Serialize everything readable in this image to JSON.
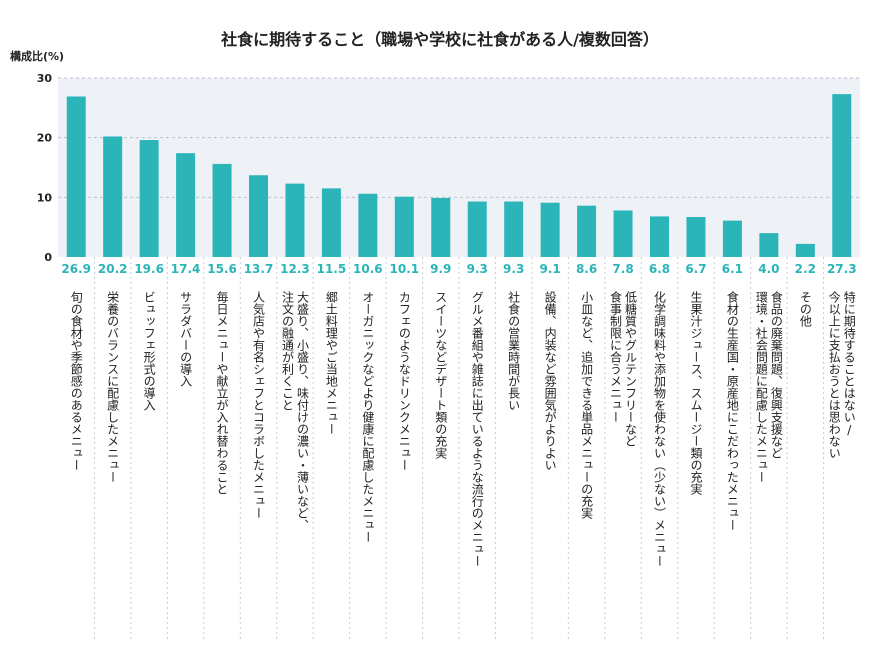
{
  "chart_data": {
    "type": "bar",
    "title": "社食に期待すること（職場や学校に社食がある人/複数回答）",
    "ylabel": "構成比(%)",
    "ylim": [
      0,
      30
    ],
    "yticks": [
      0,
      10,
      20,
      30
    ],
    "grid": true,
    "bar_color": "#2bb5b8",
    "plot_bg": "#eef2f7",
    "categories": [
      [
        "旬の食材や季節感のあるメニュー"
      ],
      [
        "栄養のバランスに配慮したメニュー"
      ],
      [
        "ビュッフェ形式の導入"
      ],
      [
        "サラダバーの導入"
      ],
      [
        "毎日メニューや献立が入れ替わること"
      ],
      [
        "人気店や有名シェフとコラボしたメニュー"
      ],
      [
        "大盛り、小盛り、味付けの濃い・薄いなど、",
        "注文の融通が利くこと"
      ],
      [
        "郷土料理やご当地メニュー"
      ],
      [
        "オーガニックなどより健康に配慮したメニュー"
      ],
      [
        "カフェのようなドリンクメニュー"
      ],
      [
        "スイーツなどデザート類の充実"
      ],
      [
        "グルメ番組や雑誌に出ているような流行のメニュー"
      ],
      [
        "社食の営業時間が長い"
      ],
      [
        "設備、内装など雰囲気がよりよい"
      ],
      [
        "小皿など、追加できる単品メニューの充実"
      ],
      [
        "低糖質やグルテンフリーなど",
        "食事制限に合うメニュー"
      ],
      [
        "化学調味料や添加物を使わない（少ない）メニュー"
      ],
      [
        "生果汁ジュース、スムージー類の充実"
      ],
      [
        "食材の生産国・原産地にこだわったメニュー"
      ],
      [
        "食品の廃棄問題、復興支援など",
        "環境・社会問題に配慮したメニュー"
      ],
      [
        "その他"
      ],
      [
        "特に期待することはない/",
        "今以上に支払おうとは思わない"
      ]
    ],
    "values": [
      26.9,
      20.2,
      19.6,
      17.4,
      15.6,
      13.7,
      12.3,
      11.5,
      10.6,
      10.1,
      9.9,
      9.3,
      9.3,
      9.1,
      8.6,
      7.8,
      6.8,
      6.7,
      6.1,
      4.0,
      2.2,
      27.3
    ],
    "value_labels": [
      "26.9",
      "20.2",
      "19.6",
      "17.4",
      "15.6",
      "13.7",
      "12.3",
      "11.5",
      "10.6",
      "10.1",
      "9.9",
      "9.3",
      "9.3",
      "9.1",
      "8.6",
      "7.8",
      "6.8",
      "6.7",
      "6.1",
      "4.0",
      "2.2",
      "27.3"
    ]
  }
}
